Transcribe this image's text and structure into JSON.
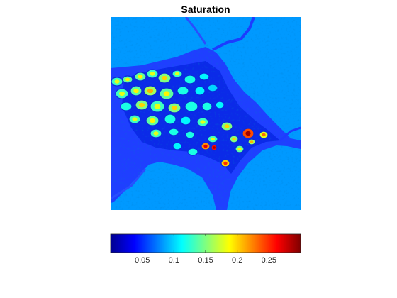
{
  "chart_data": {
    "type": "heatmap",
    "title": "Saturation",
    "colormap": "jet",
    "axes_visible": false,
    "colorbar": {
      "location": "southoutside",
      "range": [
        0,
        0.3
      ],
      "ticks": [
        0.05,
        0.1,
        0.15,
        0.2,
        0.25
      ],
      "tick_labels": [
        "0.05",
        "0.1",
        "0.15",
        "0.2",
        "0.25"
      ]
    },
    "value_description": {
      "background_pore": 0.085,
      "solid_matrix_min": 0.0,
      "max_hotspot": 0.27
    }
  }
}
